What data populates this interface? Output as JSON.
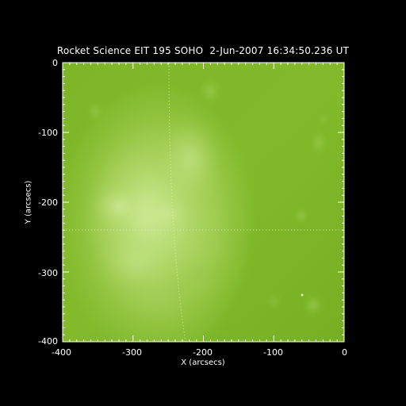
{
  "image": {
    "title": "Rocket Science EIT 195 SOHO  2-Jun-2007 16:34:50.236 UT",
    "xlabel": "X (arcsecs)",
    "ylabel": "Y (arcsecs)",
    "x_ticks": [
      "-400",
      "-300",
      "-200",
      "-100",
      "0"
    ],
    "y_ticks": [
      "0",
      "-100",
      "-200",
      "-300",
      "-400"
    ],
    "colors": {
      "background": "#000000",
      "solar_base": "#79b422",
      "solar_bright": "#bfe27a",
      "axis": "#ffffff"
    }
  }
}
